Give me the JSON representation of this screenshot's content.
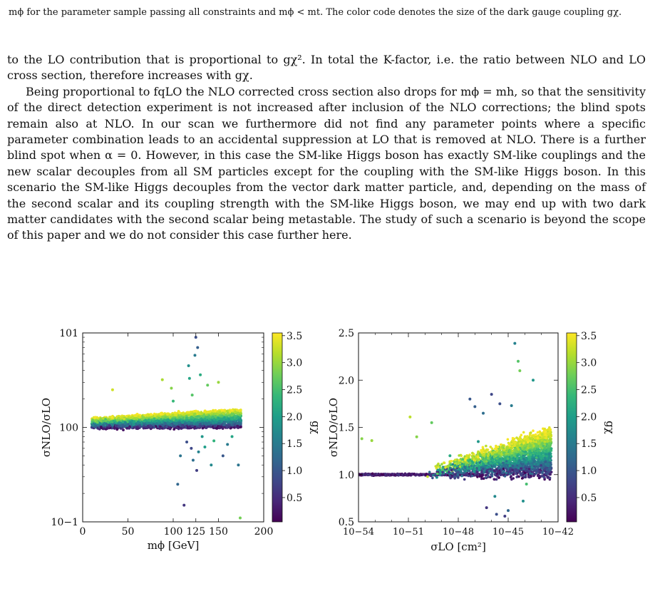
{
  "top_caption": "mϕ for the parameter sample passing all constraints and mϕ < mt. The color code denotes the size of the dark gauge coupling gχ.",
  "paragraphs": [
    "to the LO contribution that is proportional to gχ². In total the K-factor, i.e. the ratio between NLO and LO cross section, therefore increases with gχ.",
    "Being proportional to fqLO the NLO corrected cross section also drops for mϕ = mh, so that the sensitivity of the direct detection experiment is not increased after inclusion of the NLO corrections; the blind spots remain also at NLO. In our scan we furthermore did not find any parameter points where a specific parameter combination leads to an accidental suppression at LO that is removed at NLO. There is a further blind spot when α = 0. However, in this case the SM-like Higgs boson has exactly SM-like couplings and the new scalar decouples from all SM particles except for the coupling with the SM-like Higgs boson. In this scenario the SM-like Higgs decouples from the vector dark matter particle, and, depending on the mass of the second scalar and its coupling strength with the SM-like Higgs boson, we may end up with two dark matter candidates with the second scalar being metastable. The study of such a scenario is beyond the scope of this paper and we do not consider this case further here."
  ],
  "bottom_caption": "",
  "colors": {
    "viridis": [
      "#440154",
      "#482878",
      "#3e4989",
      "#31688e",
      "#26828e",
      "#1f9e89",
      "#35b779",
      "#6ece58",
      "#b5de2b",
      "#fde725"
    ]
  },
  "chart_data": [
    {
      "type": "scatter",
      "xlabel": "mϕ [GeV]",
      "ylabel": "σNLO/σLO",
      "xlim": [
        0,
        200
      ],
      "ylim": [
        0.1,
        10
      ],
      "yscale": "log",
      "xticks": [
        "0",
        "50",
        "100",
        "125",
        "150",
        "200"
      ],
      "xtick_values": [
        0,
        50,
        100,
        125,
        150,
        200
      ],
      "yticks": [
        "10−1",
        "100",
        "101"
      ],
      "ytick_values": [
        0.1,
        1,
        10
      ],
      "colorbar": {
        "label": "gχ",
        "range": [
          0.05,
          3.55
        ],
        "ticks": [
          "0.5",
          "1.0",
          "1.5",
          "2.0",
          "2.5",
          "3.0",
          "3.5"
        ],
        "tick_values": [
          0.5,
          1.0,
          1.5,
          2.0,
          2.5,
          3.0,
          3.5
        ]
      },
      "band": {
        "x_range": [
          10,
          175
        ],
        "y_at_gchi_0": 1.0,
        "y_at_gchi_max_start": 1.25,
        "y_at_gchi_max_end": 1.55
      },
      "outliers": [
        [
          33,
          2.5,
          3.3
        ],
        [
          88,
          3.2,
          3.1
        ],
        [
          98,
          2.6,
          2.9
        ],
        [
          100,
          1.9,
          2.4
        ],
        [
          105,
          0.25,
          1.2
        ],
        [
          108,
          0.5,
          1.4
        ],
        [
          112,
          0.15,
          0.6
        ],
        [
          115,
          0.7,
          0.9
        ],
        [
          117,
          4.5,
          1.8
        ],
        [
          118,
          3.3,
          2.1
        ],
        [
          120,
          0.6,
          0.8
        ],
        [
          121,
          2.2,
          2.6
        ],
        [
          122,
          0.45,
          1.3
        ],
        [
          124,
          5.8,
          1.5
        ],
        [
          125,
          9.0,
          0.9
        ],
        [
          126,
          0.35,
          0.7
        ],
        [
          127,
          7.0,
          1.1
        ],
        [
          128,
          0.55,
          1.6
        ],
        [
          130,
          3.6,
          2.2
        ],
        [
          132,
          0.8,
          1.9
        ],
        [
          135,
          0.62,
          2.0
        ],
        [
          138,
          2.8,
          2.7
        ],
        [
          142,
          0.4,
          1.7
        ],
        [
          145,
          0.72,
          2.3
        ],
        [
          150,
          3.0,
          3.0
        ],
        [
          155,
          0.5,
          1.0
        ],
        [
          160,
          0.66,
          1.5
        ],
        [
          165,
          0.8,
          2.1
        ],
        [
          172,
          0.4,
          1.4
        ],
        [
          174,
          0.11,
          2.8
        ]
      ]
    },
    {
      "type": "scatter",
      "xlabel": "σLO [cm²]",
      "ylabel": "σNLO/σLO",
      "xlim": [
        1e-54,
        1e-42
      ],
      "xscale": "log",
      "ylim": [
        0.5,
        2.5
      ],
      "xticks": [
        "10−54",
        "10−51",
        "10−48",
        "10−45",
        "10−42"
      ],
      "xtick_exponents": [
        -54,
        -51,
        -48,
        -45,
        -42
      ],
      "yticks": [
        "0.5",
        "1.0",
        "1.5",
        "2.0",
        "2.5"
      ],
      "ytick_values": [
        0.5,
        1.0,
        1.5,
        2.0,
        2.5
      ],
      "colorbar": {
        "label": "gχ",
        "range": [
          0.05,
          3.55
        ],
        "ticks": [
          "0.5",
          "1.0",
          "1.5",
          "2.0",
          "2.5",
          "3.0",
          "3.5"
        ],
        "tick_values": [
          0.5,
          1.0,
          1.5,
          2.0,
          2.5,
          3.0,
          3.5
        ]
      },
      "outliers": [
        [
          -53.8,
          1.38,
          2.9
        ],
        [
          -53.2,
          1.36,
          3.0
        ],
        [
          -50.9,
          1.61,
          3.2
        ],
        [
          -50.5,
          1.4,
          2.9
        ],
        [
          -49.6,
          1.55,
          2.7
        ],
        [
          -48.5,
          1.2,
          2.2
        ],
        [
          -47.3,
          1.8,
          1.0
        ],
        [
          -47.0,
          1.72,
          1.1
        ],
        [
          -46.8,
          1.35,
          1.9
        ],
        [
          -46.5,
          1.65,
          1.3
        ],
        [
          -46.0,
          1.85,
          0.8
        ],
        [
          -45.8,
          0.77,
          1.7
        ],
        [
          -45.5,
          1.75,
          0.9
        ],
        [
          -45.2,
          0.56,
          0.7
        ],
        [
          -45.0,
          0.62,
          1.2
        ],
        [
          -44.8,
          1.73,
          1.5
        ],
        [
          -44.6,
          2.39,
          1.6
        ],
        [
          -44.4,
          2.2,
          2.6
        ],
        [
          -44.3,
          2.1,
          2.8
        ],
        [
          -44.1,
          0.72,
          1.8
        ],
        [
          -43.9,
          0.9,
          2.5
        ],
        [
          -43.5,
          2.0,
          1.9
        ],
        [
          -46.3,
          0.65,
          0.6
        ],
        [
          -45.7,
          0.58,
          0.9
        ]
      ]
    }
  ]
}
